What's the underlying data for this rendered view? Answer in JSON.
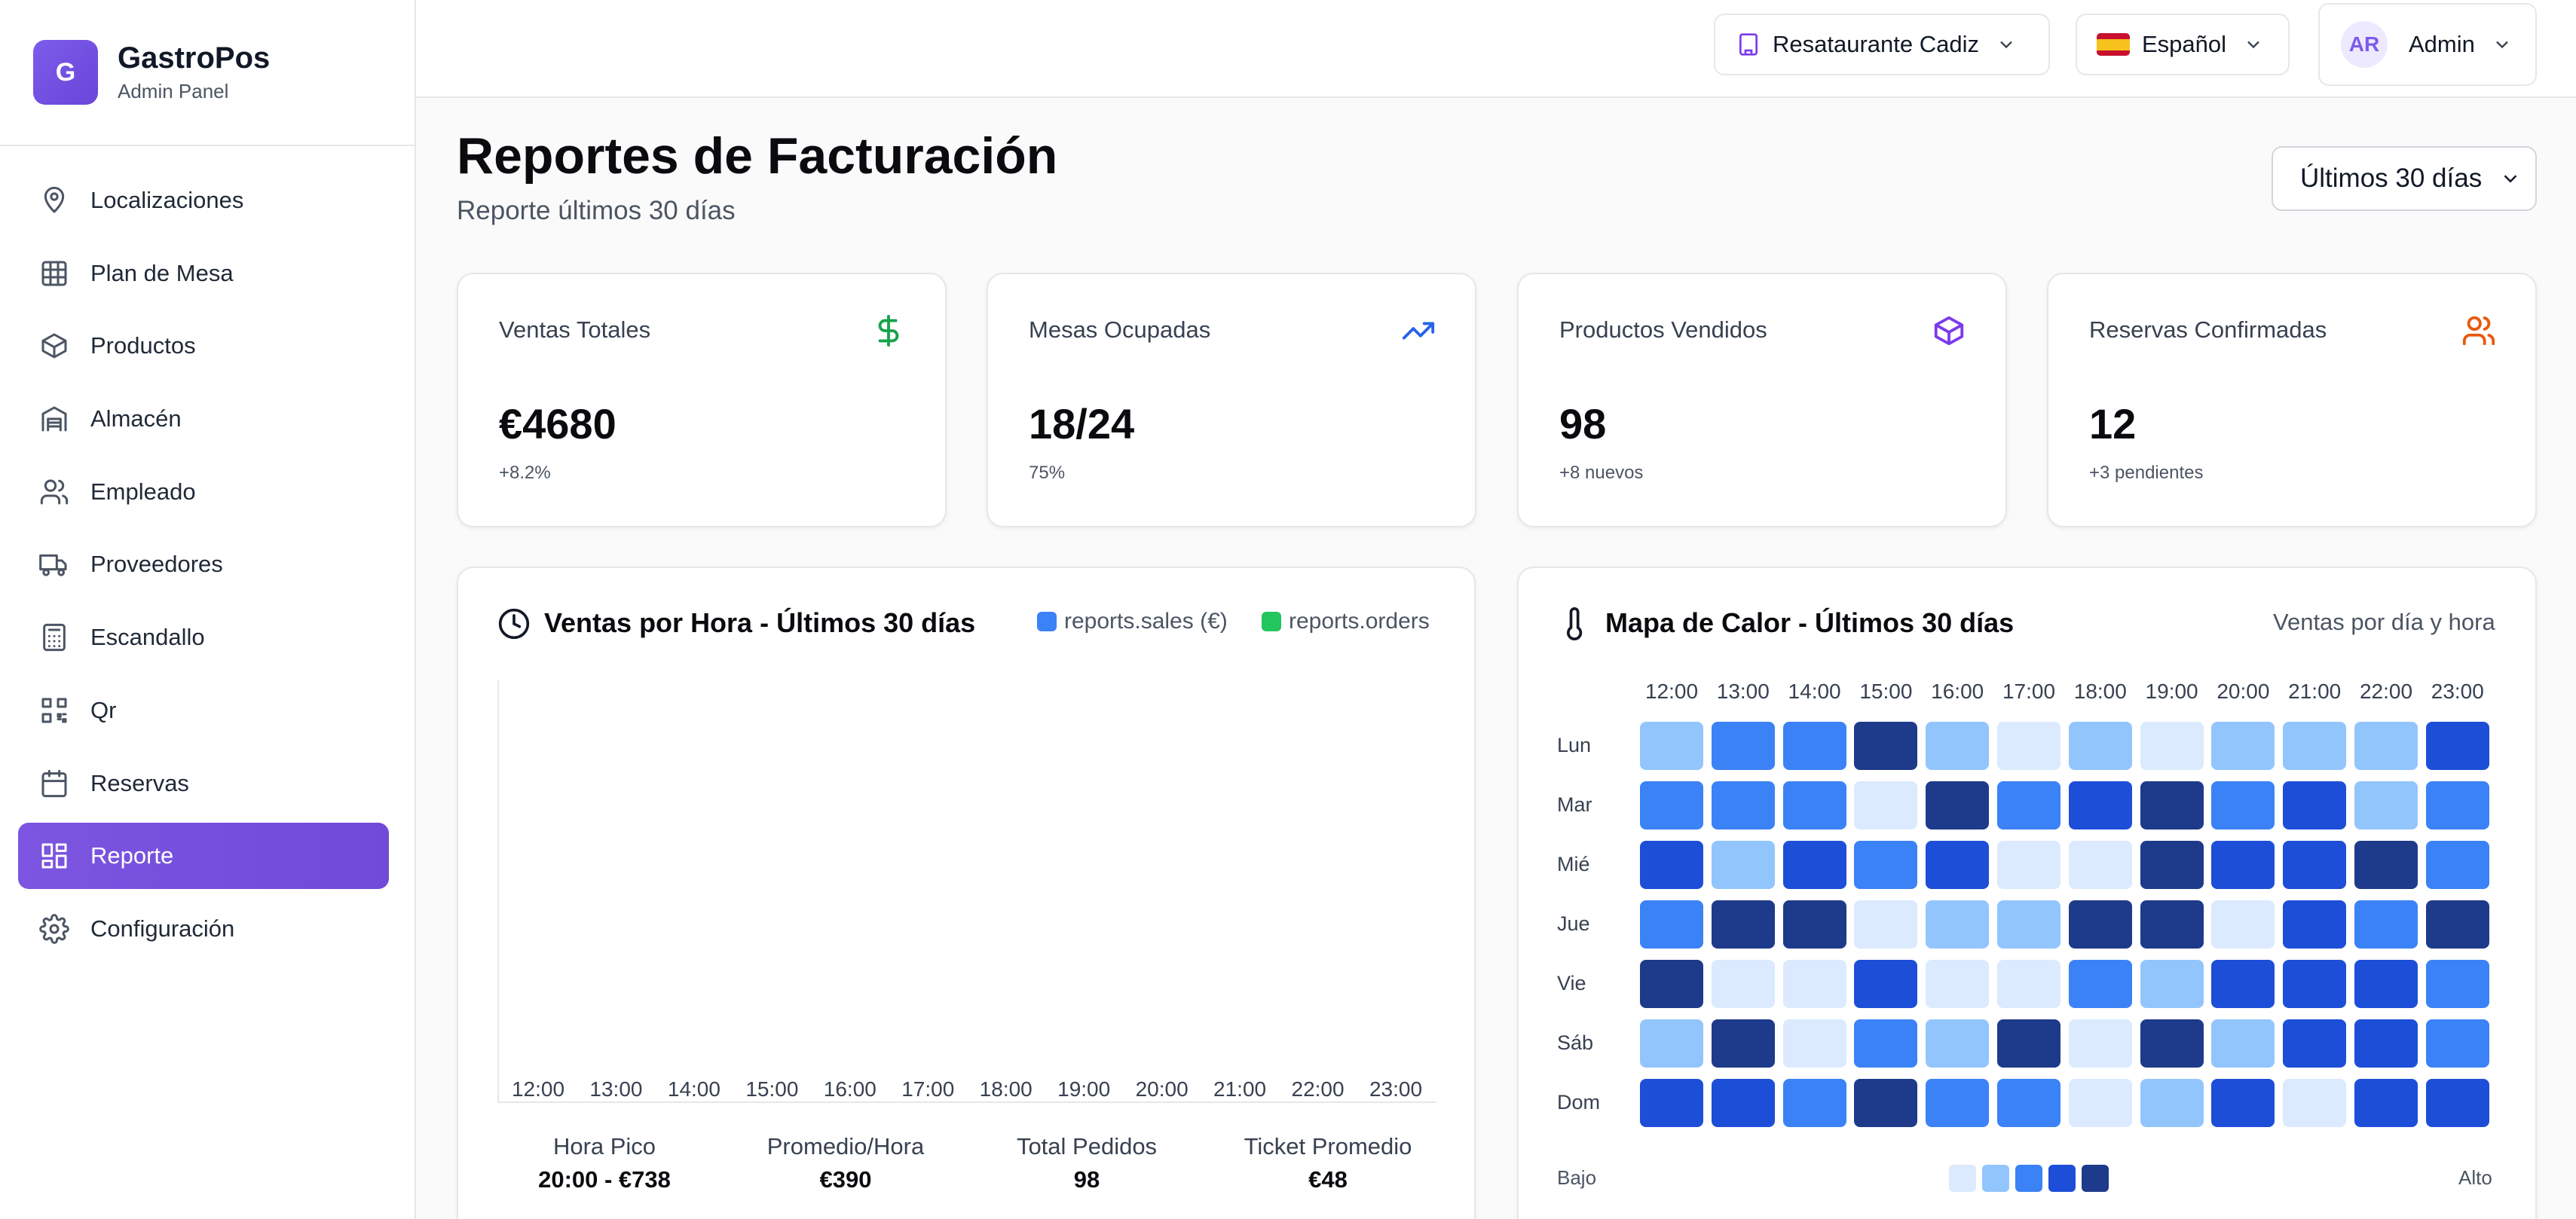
{
  "brand": {
    "logo_letter": "G",
    "name": "GastroPos",
    "subtitle": "Admin Panel"
  },
  "sidebar": {
    "items": [
      {
        "label": "Localizaciones",
        "icon": "map-pin-icon"
      },
      {
        "label": "Plan de Mesa",
        "icon": "grid-icon"
      },
      {
        "label": "Productos",
        "icon": "package-icon"
      },
      {
        "label": "Almacén",
        "icon": "warehouse-icon"
      },
      {
        "label": "Empleado",
        "icon": "users-icon"
      },
      {
        "label": "Proveedores",
        "icon": "truck-icon"
      },
      {
        "label": "Escandallo",
        "icon": "calculator-icon"
      },
      {
        "label": "Qr",
        "icon": "qr-code-icon"
      },
      {
        "label": "Reservas",
        "icon": "calendar-icon"
      },
      {
        "label": "Reporte",
        "icon": "layout-dashboard-icon",
        "active": true
      },
      {
        "label": "Configuración",
        "icon": "settings-icon"
      }
    ]
  },
  "header": {
    "restaurant": "Resataurante Cadiz",
    "language": "Español",
    "user_initials": "AR",
    "user_name": "Admin"
  },
  "page": {
    "title": "Reportes de Facturación",
    "subtitle": "Reporte últimos 30 días",
    "period": "Últimos 30 días"
  },
  "stats": [
    {
      "title": "Ventas Totales",
      "value": "€4680",
      "sub": "+8.2%",
      "icon": "dollar-icon",
      "color": "#16a34a"
    },
    {
      "title": "Mesas Ocupadas",
      "value": "18/24",
      "sub": "75%",
      "icon": "trending-up-icon",
      "color": "#2563eb"
    },
    {
      "title": "Productos Vendidos",
      "value": "98",
      "sub": "+8 nuevos",
      "icon": "package-icon",
      "color": "#7c3aed"
    },
    {
      "title": "Reservas Confirmadas",
      "value": "12",
      "sub": "+3 pendientes",
      "icon": "users-icon",
      "color": "#ea580c"
    }
  ],
  "sales_chart": {
    "title": "Ventas por Hora - Últimos 30 días",
    "legend": [
      {
        "label": "reports.sales (€)",
        "color": "#3b82f6"
      },
      {
        "label": "reports.orders",
        "color": "#22c55e"
      }
    ],
    "hours": [
      "12:00",
      "13:00",
      "14:00",
      "15:00",
      "16:00",
      "17:00",
      "18:00",
      "19:00",
      "20:00",
      "21:00",
      "22:00",
      "23:00"
    ],
    "summary": [
      {
        "label": "Hora Pico",
        "value": "20:00 - €738"
      },
      {
        "label": "Promedio/Hora",
        "value": "€390"
      },
      {
        "label": "Total Pedidos",
        "value": "98"
      },
      {
        "label": "Ticket Promedio",
        "value": "€48"
      }
    ]
  },
  "heatmap": {
    "title": "Mapa de Calor - Últimos 30 días",
    "subtitle": "Ventas por día y hora",
    "hours": [
      "12:00",
      "13:00",
      "14:00",
      "15:00",
      "16:00",
      "17:00",
      "18:00",
      "19:00",
      "20:00",
      "21:00",
      "22:00",
      "23:00"
    ],
    "days": [
      "Lun",
      "Mar",
      "Mié",
      "Jue",
      "Vie",
      "Sáb",
      "Dom"
    ],
    "levels": [
      [
        1,
        2,
        2,
        4,
        1,
        0,
        1,
        0,
        1,
        1,
        1,
        3
      ],
      [
        2,
        2,
        2,
        0,
        4,
        2,
        3,
        4,
        2,
        3,
        1,
        2
      ],
      [
        3,
        1,
        3,
        2,
        3,
        0,
        0,
        4,
        3,
        3,
        4,
        2
      ],
      [
        2,
        4,
        4,
        0,
        1,
        1,
        4,
        4,
        0,
        3,
        2,
        4
      ],
      [
        4,
        0,
        0,
        3,
        0,
        0,
        2,
        1,
        3,
        3,
        3,
        2
      ],
      [
        1,
        4,
        0,
        2,
        1,
        4,
        0,
        4,
        1,
        3,
        3,
        2
      ],
      [
        3,
        3,
        2,
        4,
        2,
        2,
        0,
        1,
        3,
        0,
        3,
        3
      ]
    ],
    "scale_colors": [
      "#dbeafe",
      "#93c5fd",
      "#3b82f6",
      "#1d4ed8",
      "#1e3a8a"
    ],
    "low_label": "Bajo",
    "high_label": "Alto"
  }
}
